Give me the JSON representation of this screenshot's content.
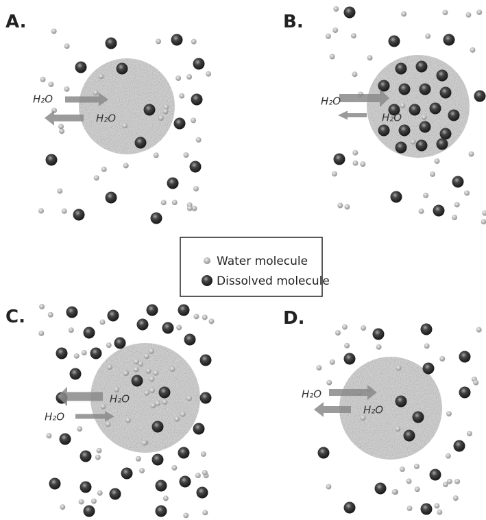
{
  "panels": [
    {
      "label": "A.",
      "outer_label": "H₂O",
      "inner_label": "H₂O"
    },
    {
      "label": "B.",
      "outer_label": "H₂O",
      "inner_label": "H₂O"
    },
    {
      "label": "C.",
      "outer_label": "H₂O",
      "inner_label": "H₂O"
    },
    {
      "label": "D.",
      "outer_label": "H₂O",
      "inner_label": "H₂O"
    }
  ],
  "legend": [
    "Water molecule",
    "Dissolved molecule"
  ]
}
